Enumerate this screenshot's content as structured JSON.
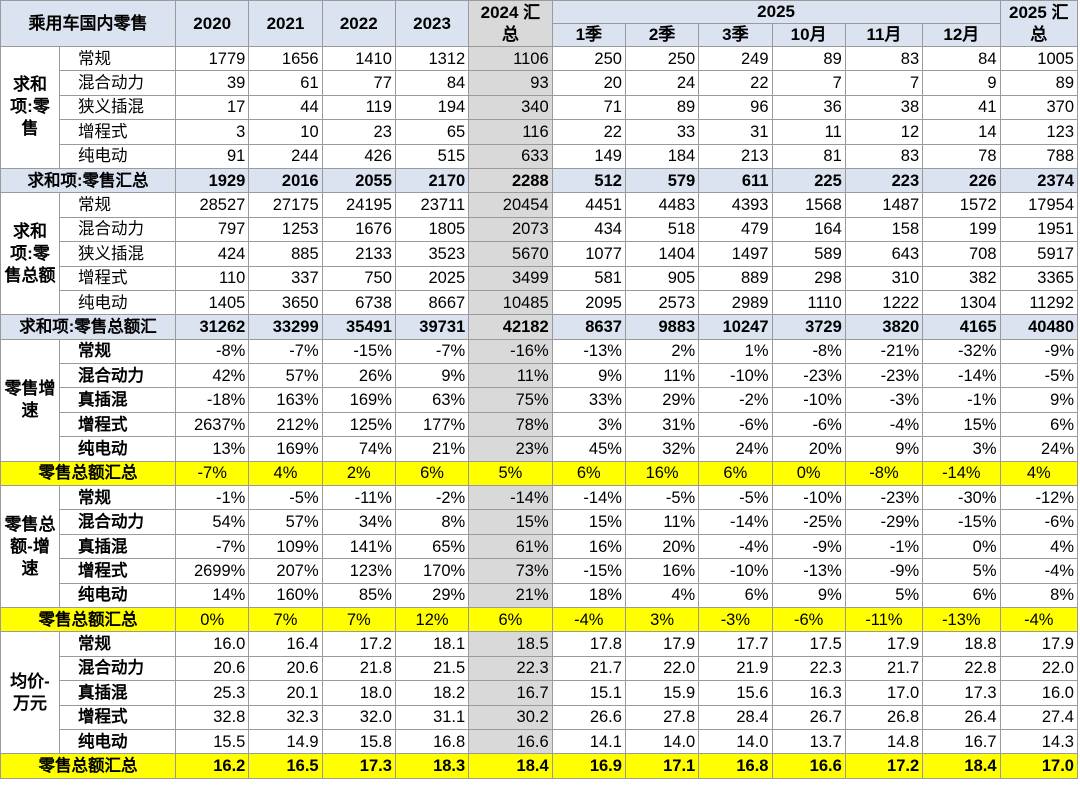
{
  "header": {
    "corner": "乘用车国内零售",
    "years": [
      "2020",
      "2021",
      "2022",
      "2023"
    ],
    "total2024": "2024 汇总",
    "year2025": "2025",
    "periods2025": [
      "1季",
      "2季",
      "3季",
      "10月",
      "11月",
      "12月"
    ],
    "total2025": "2025 汇总"
  },
  "sections": [
    {
      "group": "求和项:零售",
      "rows": [
        {
          "label": "常规",
          "values": [
            "1779",
            "1656",
            "1410",
            "1312",
            "1106",
            "250",
            "250",
            "249",
            "89",
            "83",
            "84",
            "1005"
          ]
        },
        {
          "label": "混合动力",
          "values": [
            "39",
            "61",
            "77",
            "84",
            "93",
            "20",
            "24",
            "22",
            "7",
            "7",
            "9",
            "89"
          ]
        },
        {
          "label": "狭义插混",
          "values": [
            "17",
            "44",
            "119",
            "194",
            "340",
            "71",
            "89",
            "96",
            "36",
            "38",
            "41",
            "370"
          ]
        },
        {
          "label": "增程式",
          "values": [
            "3",
            "10",
            "23",
            "65",
            "116",
            "22",
            "33",
            "31",
            "11",
            "12",
            "14",
            "123"
          ]
        },
        {
          "label": "纯电动",
          "values": [
            "91",
            "244",
            "426",
            "515",
            "633",
            "149",
            "184",
            "213",
            "81",
            "83",
            "78",
            "788"
          ]
        }
      ],
      "total": {
        "label": "求和项:零售汇总",
        "values": [
          "1929",
          "2016",
          "2055",
          "2170",
          "2288",
          "512",
          "579",
          "611",
          "225",
          "223",
          "226",
          "2374"
        ]
      }
    },
    {
      "group": "求和项:零售总额",
      "rows": [
        {
          "label": "常规",
          "values": [
            "28527",
            "27175",
            "24195",
            "23711",
            "20454",
            "4451",
            "4483",
            "4393",
            "1568",
            "1487",
            "1572",
            "17954"
          ]
        },
        {
          "label": "混合动力",
          "values": [
            "797",
            "1253",
            "1676",
            "1805",
            "2073",
            "434",
            "518",
            "479",
            "164",
            "158",
            "199",
            "1951"
          ]
        },
        {
          "label": "狭义插混",
          "values": [
            "424",
            "885",
            "2133",
            "3523",
            "5670",
            "1077",
            "1404",
            "1497",
            "589",
            "643",
            "708",
            "5917"
          ]
        },
        {
          "label": "增程式",
          "values": [
            "110",
            "337",
            "750",
            "2025",
            "3499",
            "581",
            "905",
            "889",
            "298",
            "310",
            "382",
            "3365"
          ]
        },
        {
          "label": "纯电动",
          "values": [
            "1405",
            "3650",
            "6738",
            "8667",
            "10485",
            "2095",
            "2573",
            "2989",
            "1110",
            "1222",
            "1304",
            "11292"
          ]
        }
      ],
      "total": {
        "label": "求和项:零售总额汇",
        "values": [
          "31262",
          "33299",
          "35491",
          "39731",
          "42182",
          "8637",
          "9883",
          "10247",
          "3729",
          "3820",
          "4165",
          "40480"
        ]
      }
    },
    {
      "group": "零售增速",
      "rows": [
        {
          "label": "常规",
          "values": [
            "-8%",
            "-7%",
            "-15%",
            "-7%",
            "-16%",
            "-13%",
            "2%",
            "1%",
            "-8%",
            "-21%",
            "-32%",
            "-9%"
          ]
        },
        {
          "label": "混合动力",
          "values": [
            "42%",
            "57%",
            "26%",
            "9%",
            "11%",
            "9%",
            "11%",
            "-10%",
            "-23%",
            "-23%",
            "-14%",
            "-5%"
          ]
        },
        {
          "label": "真插混",
          "values": [
            "-18%",
            "163%",
            "169%",
            "63%",
            "75%",
            "33%",
            "29%",
            "-2%",
            "-10%",
            "-3%",
            "-1%",
            "9%"
          ]
        },
        {
          "label": "增程式",
          "values": [
            "2637%",
            "212%",
            "125%",
            "177%",
            "78%",
            "3%",
            "31%",
            "-6%",
            "-6%",
            "-4%",
            "15%",
            "6%"
          ]
        },
        {
          "label": "纯电动",
          "values": [
            "13%",
            "169%",
            "74%",
            "21%",
            "23%",
            "45%",
            "32%",
            "24%",
            "20%",
            "9%",
            "3%",
            "24%"
          ]
        }
      ],
      "total": {
        "label": "零售总额汇总",
        "values": [
          "-7%",
          "4%",
          "2%",
          "6%",
          "5%",
          "6%",
          "16%",
          "6%",
          "0%",
          "-8%",
          "-14%",
          "4%"
        ]
      }
    },
    {
      "group": "零售总额-增速",
      "rows": [
        {
          "label": "常规",
          "values": [
            "-1%",
            "-5%",
            "-11%",
            "-2%",
            "-14%",
            "-14%",
            "-5%",
            "-5%",
            "-10%",
            "-23%",
            "-30%",
            "-12%"
          ]
        },
        {
          "label": "混合动力",
          "values": [
            "54%",
            "57%",
            "34%",
            "8%",
            "15%",
            "15%",
            "11%",
            "-14%",
            "-25%",
            "-29%",
            "-15%",
            "-6%"
          ]
        },
        {
          "label": "真插混",
          "values": [
            "-7%",
            "109%",
            "141%",
            "65%",
            "61%",
            "16%",
            "20%",
            "-4%",
            "-9%",
            "-1%",
            "0%",
            "4%"
          ]
        },
        {
          "label": "增程式",
          "values": [
            "2699%",
            "207%",
            "123%",
            "170%",
            "73%",
            "-15%",
            "16%",
            "-10%",
            "-13%",
            "-9%",
            "5%",
            "-4%"
          ]
        },
        {
          "label": "纯电动",
          "values": [
            "14%",
            "160%",
            "85%",
            "29%",
            "21%",
            "18%",
            "4%",
            "6%",
            "9%",
            "5%",
            "6%",
            "8%"
          ]
        }
      ],
      "total": {
        "label": "零售总额汇总",
        "values": [
          "0%",
          "7%",
          "7%",
          "12%",
          "6%",
          "-4%",
          "3%",
          "-3%",
          "-6%",
          "-11%",
          "-13%",
          "-4%"
        ]
      }
    },
    {
      "group": "均价-万元",
      "rows": [
        {
          "label": "常规",
          "values": [
            "16.0",
            "16.4",
            "17.2",
            "18.1",
            "18.5",
            "17.8",
            "17.9",
            "17.7",
            "17.5",
            "17.9",
            "18.8",
            "17.9"
          ]
        },
        {
          "label": "混合动力",
          "values": [
            "20.6",
            "20.6",
            "21.8",
            "21.5",
            "22.3",
            "21.7",
            "22.0",
            "21.9",
            "22.3",
            "21.7",
            "22.8",
            "22.0"
          ]
        },
        {
          "label": "真插混",
          "values": [
            "25.3",
            "20.1",
            "18.0",
            "18.2",
            "16.7",
            "15.1",
            "15.9",
            "15.6",
            "16.3",
            "17.0",
            "17.3",
            "16.0"
          ]
        },
        {
          "label": "增程式",
          "values": [
            "32.8",
            "32.3",
            "32.0",
            "31.1",
            "30.2",
            "26.6",
            "27.8",
            "28.4",
            "26.7",
            "26.8",
            "26.4",
            "27.4"
          ]
        },
        {
          "label": "纯电动",
          "values": [
            "15.5",
            "14.9",
            "15.8",
            "16.8",
            "16.6",
            "14.1",
            "14.0",
            "14.0",
            "13.7",
            "14.8",
            "16.7",
            "14.3"
          ]
        }
      ],
      "total": {
        "label": "零售总额汇总",
        "values": [
          "16.2",
          "16.5",
          "17.3",
          "18.3",
          "18.4",
          "16.9",
          "17.1",
          "16.8",
          "16.6",
          "17.2",
          "18.4",
          "17.0"
        ]
      }
    }
  ]
}
